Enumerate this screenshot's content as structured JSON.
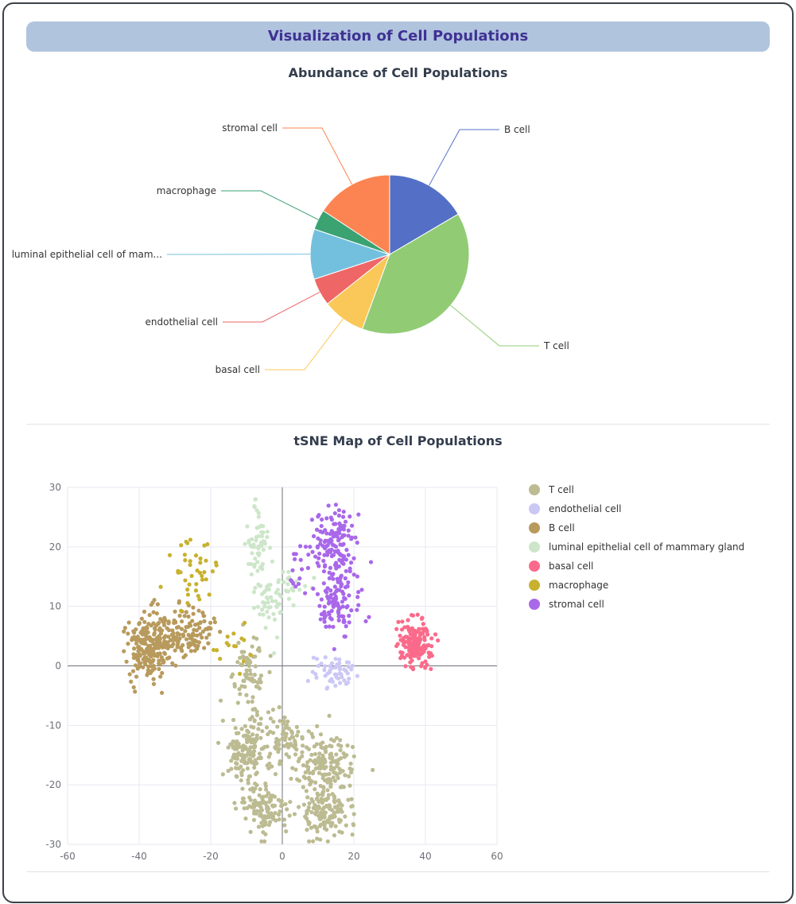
{
  "header": {
    "title": "Visualization of Cell Populations"
  },
  "chart_data": [
    {
      "type": "pie",
      "title": "Abundance of Cell Populations",
      "slices": [
        {
          "label": "B cell",
          "value": 16.5,
          "color": "#5470c6"
        },
        {
          "label": "T cell",
          "value": 39.0,
          "color": "#91cc75"
        },
        {
          "label": "basal cell",
          "value": 8.7,
          "color": "#fac858"
        },
        {
          "label": "endothelial cell",
          "value": 5.6,
          "color": "#ee6666"
        },
        {
          "label": "luminal epithelial cell of mam...",
          "value": 10.2,
          "color": "#73c0de"
        },
        {
          "label": "macrophage",
          "value": 4.1,
          "color": "#3ba272"
        },
        {
          "label": "stromal cell",
          "value": 15.7,
          "color": "#fc8452"
        }
      ]
    },
    {
      "type": "scatter",
      "title": "tSNE Map of Cell Populations",
      "xlim": [
        -60,
        60
      ],
      "ylim": [
        -30,
        30
      ],
      "xticks": [
        "-60",
        "-40",
        "-20",
        "0",
        "20",
        "40",
        "60"
      ],
      "yticks": [
        "30",
        "20",
        "10",
        "0",
        "-10",
        "-20",
        "-30"
      ],
      "legend_position": "right",
      "series": [
        {
          "name": "T cell",
          "color": "#bcbb92",
          "clusters": [
            [
              -10,
              -14,
              5,
              4,
              160
            ],
            [
              12,
              -17,
              6,
              4,
              180
            ],
            [
              -5,
              -24,
              5,
              3,
              120
            ],
            [
              12,
              -25,
              5,
              3,
              120
            ],
            [
              -9,
              -1,
              3,
              4,
              70
            ],
            [
              0,
              -12,
              4,
              3,
              60
            ]
          ]
        },
        {
          "name": "endothelial cell",
          "color": "#cbc8f5",
          "clusters": [
            [
              14,
              -1,
              4,
              2,
              55
            ]
          ]
        },
        {
          "name": "B cell",
          "color": "#b89a5c",
          "clusters": [
            [
              -38,
              3,
              4,
              4,
              170
            ],
            [
              -33,
              4,
              4,
              3,
              80
            ],
            [
              -25,
              6,
              4,
              3,
              90
            ]
          ]
        },
        {
          "name": "luminal epithelial cell of mammary gland",
          "color": "#cde6c9",
          "clusters": [
            [
              -7,
              20,
              2,
              5,
              60
            ],
            [
              -3,
              11,
              3,
              4,
              50
            ],
            [
              4,
              14,
              3,
              2,
              15
            ]
          ]
        },
        {
          "name": "basal cell",
          "color": "#fb6a8a",
          "clusters": [
            [
              37,
              4,
              3.5,
              3,
              150
            ]
          ]
        },
        {
          "name": "macrophage",
          "color": "#c8b12e",
          "clusters": [
            [
              -25,
              15,
              5,
              4,
              40
            ],
            [
              -14,
              3,
              6,
              3,
              15
            ]
          ]
        },
        {
          "name": "stromal cell",
          "color": "#a968e9",
          "clusters": [
            [
              15,
              21,
              5,
              4,
              130
            ],
            [
              16,
              11,
              4,
              4,
              110
            ],
            [
              4,
              16,
              2,
              3,
              15
            ]
          ]
        }
      ]
    }
  ]
}
